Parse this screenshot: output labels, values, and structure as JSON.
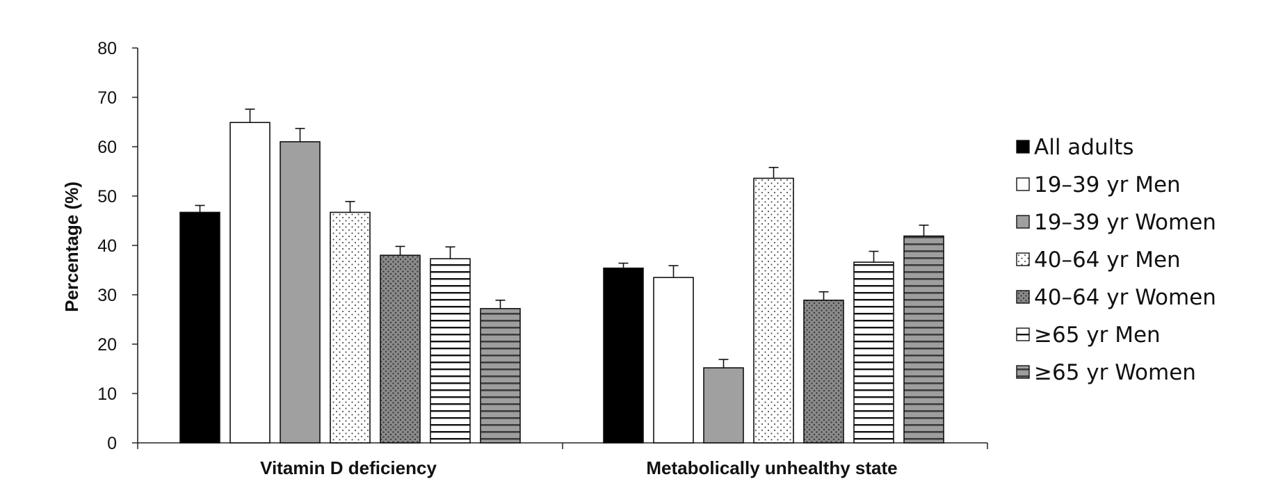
{
  "chart_data": {
    "type": "bar",
    "title": "",
    "xlabel": "",
    "ylabel": "Percentage (%)",
    "ylim": [
      0,
      80
    ],
    "yticks": [
      "0",
      "10",
      "20",
      "30",
      "40",
      "50",
      "60",
      "70",
      "80"
    ],
    "categories": [
      "Vitamin D deficiency",
      "Metabolically unhealthy state"
    ],
    "grid": false,
    "legend_position": "right",
    "error_bars": true,
    "series": [
      {
        "name": "All adults",
        "values": [
          46.7,
          35.4
        ],
        "errors": [
          1.4,
          1.0
        ],
        "pattern": "solid-black"
      },
      {
        "name": "19–39 yr Men",
        "values": [
          64.9,
          33.5
        ],
        "errors": [
          2.7,
          2.4
        ],
        "pattern": "white"
      },
      {
        "name": "19–39 yr Women",
        "values": [
          61.0,
          15.2
        ],
        "errors": [
          2.7,
          1.7
        ],
        "pattern": "gray"
      },
      {
        "name": "40–64 yr Men",
        "values": [
          46.7,
          53.6
        ],
        "errors": [
          2.2,
          2.2
        ],
        "pattern": "dots-light"
      },
      {
        "name": "40–64 yr Women",
        "values": [
          38.0,
          28.9
        ],
        "errors": [
          1.8,
          1.7
        ],
        "pattern": "dots-dark"
      },
      {
        "name": "≥65 yr Men",
        "values": [
          37.3,
          36.6
        ],
        "errors": [
          2.4,
          2.2
        ],
        "pattern": "hstripes-white"
      },
      {
        "name": "≥65 yr Women",
        "values": [
          27.2,
          41.9
        ],
        "errors": [
          1.7,
          2.2
        ],
        "pattern": "hstripes-gray"
      }
    ]
  }
}
